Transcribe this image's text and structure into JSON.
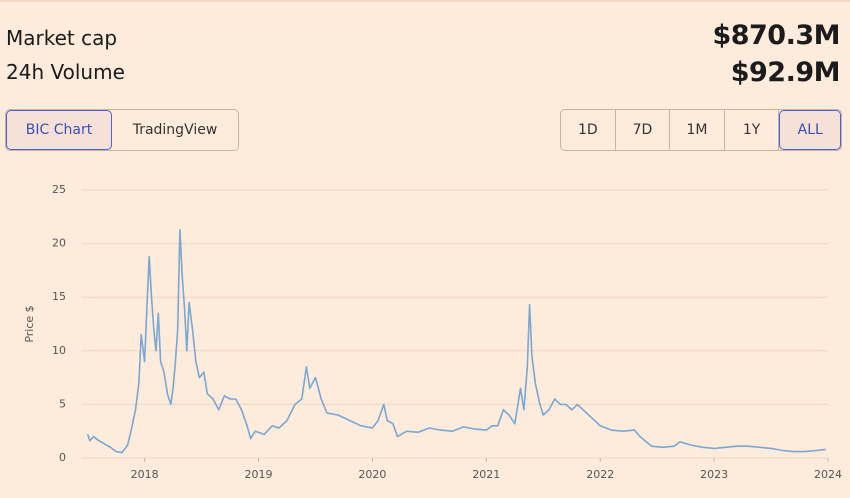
{
  "stats": [
    {
      "label": "Market cap",
      "value": "$870.3M"
    },
    {
      "label": "24h Volume",
      "value": "$92.9M"
    }
  ],
  "views": [
    {
      "label": "BIC Chart",
      "active": true
    },
    {
      "label": "TradingView",
      "active": false
    }
  ],
  "periods": [
    {
      "label": "1D",
      "active": false
    },
    {
      "label": "7D",
      "active": false
    },
    {
      "label": "1M",
      "active": false
    },
    {
      "label": "1Y",
      "active": false
    },
    {
      "label": "ALL",
      "active": true
    }
  ],
  "chart_data": {
    "type": "line",
    "y_label": "Price $",
    "color": "#7aa7d3",
    "grid": true,
    "xlim": [
      2017.45,
      2024.0
    ],
    "xticks": [
      2018,
      2019,
      2020,
      2021,
      2022,
      2023,
      2024
    ],
    "ylim": [
      0,
      25
    ],
    "yticks": [
      0,
      5,
      10,
      15,
      20,
      25
    ],
    "x": [
      2017.5,
      2017.52,
      2017.55,
      2017.6,
      2017.65,
      2017.7,
      2017.75,
      2017.8,
      2017.85,
      2017.88,
      2017.92,
      2017.95,
      2017.97,
      2018.0,
      2018.02,
      2018.04,
      2018.06,
      2018.08,
      2018.1,
      2018.12,
      2018.14,
      2018.17,
      2018.2,
      2018.23,
      2018.25,
      2018.27,
      2018.29,
      2018.31,
      2018.33,
      2018.35,
      2018.37,
      2018.39,
      2018.42,
      2018.45,
      2018.48,
      2018.52,
      2018.55,
      2018.6,
      2018.65,
      2018.7,
      2018.75,
      2018.8,
      2018.85,
      2018.9,
      2018.93,
      2018.97,
      2019.05,
      2019.12,
      2019.18,
      2019.25,
      2019.32,
      2019.38,
      2019.42,
      2019.45,
      2019.5,
      2019.55,
      2019.6,
      2019.7,
      2019.8,
      2019.9,
      2020.0,
      2020.05,
      2020.1,
      2020.13,
      2020.18,
      2020.22,
      2020.3,
      2020.4,
      2020.5,
      2020.6,
      2020.7,
      2020.8,
      2020.9,
      2021.0,
      2021.05,
      2021.1,
      2021.15,
      2021.2,
      2021.25,
      2021.3,
      2021.33,
      2021.36,
      2021.38,
      2021.4,
      2021.43,
      2021.47,
      2021.5,
      2021.55,
      2021.6,
      2021.65,
      2021.7,
      2021.75,
      2021.8,
      2021.85,
      2021.9,
      2022.0,
      2022.1,
      2022.2,
      2022.3,
      2022.35,
      2022.45,
      2022.55,
      2022.65,
      2022.7,
      2022.8,
      2022.9,
      2023.0,
      2023.1,
      2023.2,
      2023.3,
      2023.4,
      2023.5,
      2023.6,
      2023.7,
      2023.8,
      2023.9,
      2023.98
    ],
    "values": [
      2.2,
      1.6,
      2.0,
      1.6,
      1.3,
      1.0,
      0.6,
      0.5,
      1.2,
      2.5,
      4.5,
      7.0,
      11.5,
      9.0,
      14,
      18.8,
      15,
      12,
      10,
      13.5,
      9,
      8,
      6,
      5,
      6.5,
      9,
      12,
      21.3,
      17,
      14,
      10,
      14.5,
      12,
      9,
      7.5,
      8,
      6,
      5.5,
      4.5,
      5.8,
      5.5,
      5.5,
      4.5,
      3,
      1.8,
      2.5,
      2.2,
      3.0,
      2.8,
      3.5,
      5.0,
      5.5,
      8.5,
      6.5,
      7.5,
      5.5,
      4.2,
      4.0,
      3.5,
      3.0,
      2.8,
      3.5,
      5.0,
      3.5,
      3.2,
      2.0,
      2.5,
      2.4,
      2.8,
      2.6,
      2.5,
      2.9,
      2.7,
      2.6,
      3.0,
      3.0,
      4.5,
      4.0,
      3.2,
      6.5,
      4.5,
      8.5,
      14.3,
      9.5,
      7.0,
      5.0,
      4.0,
      4.5,
      5.5,
      5.0,
      5.0,
      4.5,
      5.0,
      4.5,
      4.0,
      3.0,
      2.6,
      2.5,
      2.6,
      2.0,
      1.1,
      1.0,
      1.1,
      1.5,
      1.2,
      1.0,
      0.9,
      1.0,
      1.1,
      1.1,
      1.0,
      0.9,
      0.7,
      0.6,
      0.6,
      0.7,
      0.8
    ]
  }
}
